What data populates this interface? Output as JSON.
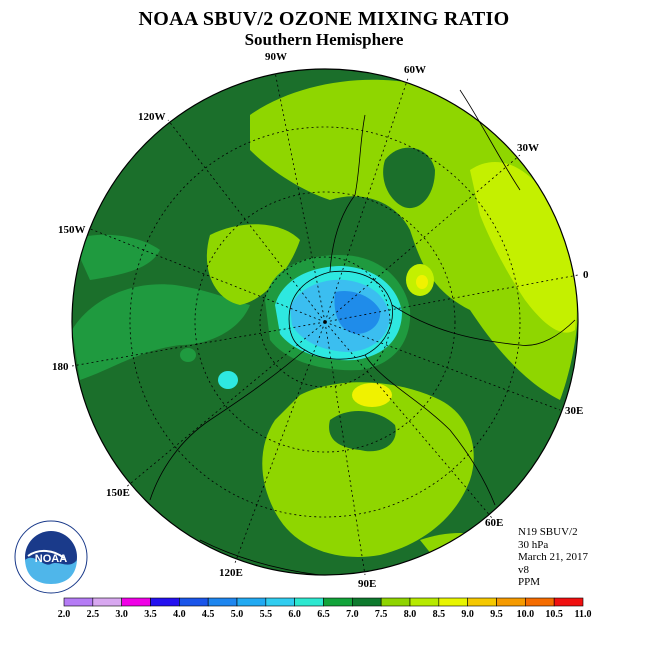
{
  "title": "NOAA SBUV/2 OZONE MIXING RATIO",
  "subtitle": "Southern Hemisphere",
  "longitude_labels": [
    "90W",
    "60W",
    "30W",
    "0",
    "30E",
    "60E",
    "90E",
    "120E",
    "150E",
    "180",
    "150W",
    "120W"
  ],
  "info": {
    "satellite": "N19 SBUV/2",
    "level": "30 hPa",
    "date": "March 21, 2017",
    "version": "v8",
    "units": "PPM"
  },
  "logo_text": "NOAA",
  "colorbar": {
    "ticks": [
      "2.0",
      "2.5",
      "3.0",
      "3.5",
      "4.0",
      "4.5",
      "5.0",
      "5.5",
      "6.0",
      "6.5",
      "7.0",
      "7.5",
      "8.0",
      "8.5",
      "9.0",
      "9.5",
      "10.0",
      "10.5",
      "11.0"
    ],
    "colors": [
      "#b57cf5",
      "#d8a8f0",
      "#f000e6",
      "#2410f0",
      "#1a55ea",
      "#1e86ef",
      "#22aaf2",
      "#31cdf0",
      "#2de8d0",
      "#12a33a",
      "#0e7a2e",
      "#8fd400",
      "#b7ea00",
      "#e8f500",
      "#f5c800",
      "#f59a00",
      "#f56c00",
      "#f01010",
      "#8b4a2b"
    ]
  },
  "legend_colors": {
    "dark_green": "#1a6e2a",
    "medium_green": "#1e9a3e",
    "light_green": "#94e000",
    "yellow_green": "#c3f000",
    "yellow": "#f0f000",
    "cyan": "#2ee8e0",
    "light_blue": "#3bbef0",
    "blue": "#1f8cea"
  }
}
